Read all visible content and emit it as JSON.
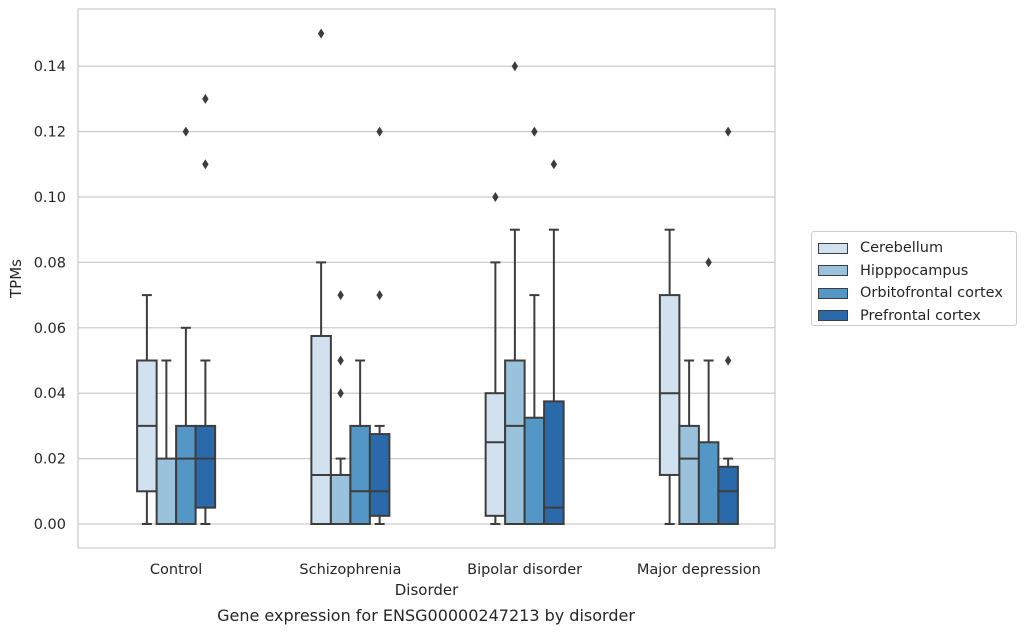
{
  "chart_data": {
    "type": "box",
    "caption": "Gene expression for ENSG00000247213 by disorder",
    "xlabel": "Disorder",
    "ylabel": "TPMs",
    "ylim": [
      -0.0075,
      0.1575
    ],
    "yticks": [
      "0.00",
      "0.02",
      "0.04",
      "0.06",
      "0.08",
      "0.10",
      "0.12",
      "0.14"
    ],
    "grid": "horizontal",
    "legend_position": "right",
    "categories": [
      "Control",
      "Schizophrenia",
      "Bipolar disorder",
      "Major depression"
    ],
    "series": [
      {
        "name": "Cerebellum",
        "color": "#d1e1ef",
        "boxes": [
          {
            "whislo": 0.0,
            "q1": 0.01,
            "med": 0.03,
            "q3": 0.05,
            "whishi": 0.07,
            "fliers": []
          },
          {
            "whislo": 0.0,
            "q1": 0.0,
            "med": 0.015,
            "q3": 0.0575,
            "whishi": 0.08,
            "fliers": [
              0.15
            ]
          },
          {
            "whislo": 0.0,
            "q1": 0.0025,
            "med": 0.025,
            "q3": 0.04,
            "whishi": 0.08,
            "fliers": [
              0.1
            ]
          },
          {
            "whislo": 0.0,
            "q1": 0.015,
            "med": 0.04,
            "q3": 0.07,
            "whishi": 0.09,
            "fliers": []
          }
        ]
      },
      {
        "name": "Hipppocampus",
        "color": "#9ac2dc",
        "boxes": [
          {
            "whislo": 0.0,
            "q1": 0.0,
            "med": 0.0,
            "q3": 0.02,
            "whishi": 0.05,
            "fliers": []
          },
          {
            "whislo": 0.0,
            "q1": 0.0,
            "med": 0.015,
            "q3": 0.015,
            "whishi": 0.02,
            "fliers": [
              0.04,
              0.05,
              0.07
            ]
          },
          {
            "whislo": 0.0,
            "q1": 0.0,
            "med": 0.03,
            "q3": 0.05,
            "whishi": 0.09,
            "fliers": [
              0.14
            ]
          },
          {
            "whislo": 0.0,
            "q1": 0.0,
            "med": 0.02,
            "q3": 0.03,
            "whishi": 0.05,
            "fliers": []
          }
        ]
      },
      {
        "name": "Orbitofrontal cortex",
        "color": "#5497c6",
        "boxes": [
          {
            "whislo": 0.0,
            "q1": 0.0,
            "med": 0.02,
            "q3": 0.03,
            "whishi": 0.06,
            "fliers": [
              0.12
            ]
          },
          {
            "whislo": 0.0,
            "q1": 0.0,
            "med": 0.01,
            "q3": 0.03,
            "whishi": 0.05,
            "fliers": []
          },
          {
            "whislo": 0.0,
            "q1": 0.0,
            "med": 0.0,
            "q3": 0.0325,
            "whishi": 0.07,
            "fliers": [
              0.12
            ]
          },
          {
            "whislo": 0.0,
            "q1": 0.0,
            "med": 0.0,
            "q3": 0.025,
            "whishi": 0.05,
            "fliers": [
              0.08
            ]
          }
        ]
      },
      {
        "name": "Prefrontal cortex",
        "color": "#2a6aaa",
        "boxes": [
          {
            "whislo": 0.0,
            "q1": 0.005,
            "med": 0.02,
            "q3": 0.03,
            "whishi": 0.05,
            "fliers": [
              0.11,
              0.13
            ]
          },
          {
            "whislo": 0.0,
            "q1": 0.0025,
            "med": 0.01,
            "q3": 0.0275,
            "whishi": 0.03,
            "fliers": [
              0.07,
              0.12
            ]
          },
          {
            "whislo": 0.0,
            "q1": 0.0,
            "med": 0.005,
            "q3": 0.0375,
            "whishi": 0.09,
            "fliers": [
              0.11
            ]
          },
          {
            "whislo": 0.0,
            "q1": 0.0,
            "med": 0.01,
            "q3": 0.0175,
            "whishi": 0.02,
            "fliers": [
              0.05,
              0.12
            ]
          }
        ]
      }
    ]
  }
}
